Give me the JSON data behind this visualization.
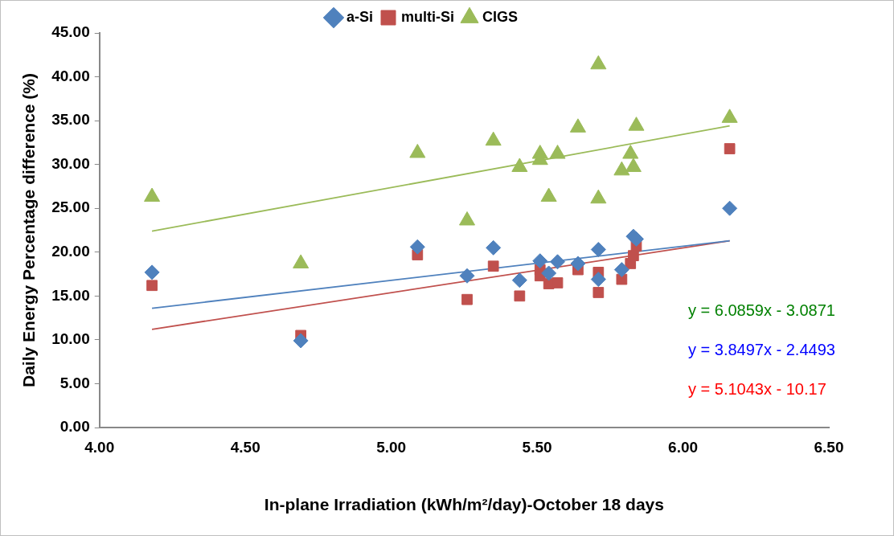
{
  "chart_data": {
    "type": "scatter",
    "xlabel": "In-plane Irradiation (kWh/m²/day)-October 18 days",
    "ylabel": "Daily Energy Percentage difference (%)",
    "xlim": [
      4,
      6.5
    ],
    "xticks": [
      {
        "value": 4,
        "label": "4.00"
      },
      {
        "value": 4.5,
        "label": "4.50"
      },
      {
        "value": 5,
        "label": "5.00"
      },
      {
        "value": 5.5,
        "label": "5.50"
      },
      {
        "value": 6,
        "label": "6.00"
      },
      {
        "value": 6.5,
        "label": "6.50"
      }
    ],
    "ylim": [
      0,
      45
    ],
    "yticks": [
      {
        "value": 0,
        "label": "0.00"
      },
      {
        "value": 5,
        "label": "5.00"
      },
      {
        "value": 10,
        "label": "10.00"
      },
      {
        "value": 15,
        "label": "15.00"
      },
      {
        "value": 20,
        "label": "20.00"
      },
      {
        "value": 25,
        "label": "25.00"
      },
      {
        "value": 30,
        "label": "30.00"
      },
      {
        "value": 35,
        "label": "35.00"
      },
      {
        "value": 40,
        "label": "40.00"
      },
      {
        "value": 45,
        "label": "45.00"
      }
    ],
    "x": [
      4.18,
      4.69,
      5.09,
      5.26,
      5.35,
      5.44,
      5.51,
      5.51,
      5.54,
      5.57,
      5.64,
      5.71,
      5.71,
      5.79,
      5.82,
      5.83,
      5.84,
      6.16
    ],
    "grid": false,
    "legend": "top",
    "series": [
      {
        "name": "a-Si",
        "color": "#4f81bd",
        "marker": "diamond",
        "values": [
          17.7,
          9.9,
          20.6,
          17.3,
          20.5,
          16.8,
          19.0,
          null,
          17.6,
          18.9,
          18.7,
          20.3,
          16.9,
          18.0,
          null,
          21.8,
          21.5,
          25.0
        ]
      },
      {
        "name": "multi-Si",
        "color": "#c0504d",
        "marker": "square",
        "values": [
          16.2,
          10.5,
          19.7,
          14.6,
          18.4,
          15.0,
          18.0,
          17.3,
          16.4,
          16.5,
          18.0,
          17.7,
          15.4,
          16.9,
          18.7,
          19.6,
          20.7,
          31.8
        ]
      },
      {
        "name": "CIGS",
        "color": "#9bbb59",
        "marker": "triangle",
        "values": [
          26.3,
          18.7,
          31.3,
          23.6,
          32.7,
          29.7,
          31.2,
          30.5,
          26.3,
          31.2,
          34.2,
          41.4,
          26.1,
          29.3,
          31.2,
          29.7,
          34.4,
          35.3
        ]
      },
      {
        "type": "line",
        "color": "#9bbb59",
        "values": [
          22.4,
          null,
          null,
          null,
          null,
          null,
          null,
          null,
          null,
          null,
          null,
          null,
          null,
          null,
          null,
          null,
          null,
          34.4
        ]
      },
      {
        "type": "line",
        "color": "#4f81bd",
        "values": [
          13.6,
          null,
          null,
          null,
          null,
          null,
          null,
          null,
          null,
          null,
          null,
          null,
          null,
          null,
          null,
          null,
          null,
          21.3
        ]
      },
      {
        "type": "line",
        "color": "#c0504d",
        "values": [
          11.2,
          null,
          null,
          null,
          null,
          null,
          null,
          null,
          null,
          null,
          null,
          null,
          null,
          null,
          null,
          null,
          null,
          21.3
        ]
      }
    ],
    "annotations": [
      "y = 6.0859x - 3.0871",
      "y = 3.8497x - 2.4493",
      "y = 5.1043x - 10.17"
    ]
  }
}
